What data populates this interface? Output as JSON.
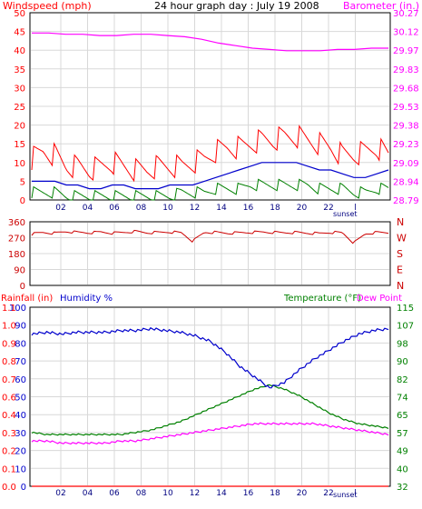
{
  "chart_data": [
    {
      "type": "line",
      "title": "24 hour graph day : July 19 2008",
      "left_axis_label": "Windspeed (mph)",
      "right_axis_label": "Barometer (in.)",
      "x_tick_labels": [
        "02",
        "04",
        "06",
        "08",
        "10",
        "12",
        "14",
        "16",
        "18",
        "20",
        "22",
        "l"
      ],
      "x_annotation": "sunset",
      "left_ticks": [
        "0",
        "5",
        "10",
        "15",
        "20",
        "25",
        "30",
        "35",
        "40",
        "45",
        "50"
      ],
      "right_ticks": [
        "28.79",
        "28.94",
        "29.09",
        "29.23",
        "29.38",
        "29.53",
        "29.68",
        "29.83",
        "29.97",
        "30.12",
        "30.27"
      ],
      "ylim_left": [
        0,
        50
      ],
      "grid": true,
      "colors": {
        "gust": "#ff0000",
        "average": "#0000cc",
        "wind_low": "#008000",
        "barometer": "#ff00ff"
      },
      "series": [
        {
          "values": [
            11,
            13,
            12,
            9,
            9,
            8,
            9,
            10,
            9,
            8,
            8,
            9,
            9,
            9,
            10,
            11,
            13,
            14,
            14,
            15,
            16,
            16,
            17,
            17,
            16,
            15,
            14,
            12,
            12,
            13,
            14,
            12
          ]
        },
        {
          "values": [
            5,
            5,
            5,
            4,
            4,
            3,
            3,
            4,
            4,
            3,
            3,
            3,
            4,
            4,
            4,
            5,
            6,
            7,
            8,
            9,
            10,
            10,
            10,
            10,
            9,
            8,
            8,
            7,
            6,
            6,
            7,
            8
          ]
        },
        {
          "values": [
            2,
            2,
            2,
            1,
            1,
            1,
            1,
            1,
            1,
            1,
            1,
            1,
            1,
            2,
            2,
            2,
            3,
            3,
            3,
            4,
            4,
            4,
            4,
            4,
            4,
            3,
            3,
            3,
            2,
            2,
            3,
            3
          ]
        },
        {
          "values": [
            30.11,
            30.11,
            30.1,
            30.1,
            30.09,
            30.09,
            30.1,
            30.1,
            30.09,
            30.08,
            30.06,
            30.03,
            30.01,
            29.99,
            29.98,
            29.97,
            29.97,
            29.97,
            29.98,
            29.98,
            29.99,
            29.99
          ]
        }
      ]
    },
    {
      "type": "line",
      "left_ticks": [
        "360",
        "270",
        "180",
        "90",
        "0"
      ],
      "right_ticks": [
        "N",
        "W",
        "S",
        "E",
        "N"
      ],
      "ylim": [
        0,
        360
      ],
      "colors": {
        "direction": "#cc0000"
      },
      "series": [
        {
          "values": [
            290,
            300,
            295,
            305,
            300,
            298,
            302,
            296,
            300,
            305,
            298,
            300,
            302,
            298,
            250,
            300,
            300,
            295,
            298,
            300,
            302,
            300,
            298,
            300,
            296,
            294,
            300,
            298,
            240,
            292,
            300,
            298
          ]
        }
      ]
    },
    {
      "type": "line",
      "rain_label": "Rainfall (in)",
      "humidity_label": "Humidity %",
      "temperature_label": "Temperature (°F)",
      "dew_label": "Dew Point",
      "left_ticks_humidity": [
        "0",
        "10",
        "20",
        "30",
        "40",
        "50",
        "60",
        "70",
        "80",
        "90",
        "100"
      ],
      "left_ticks_rain": [
        "0.0",
        "0.1",
        "0.2",
        "0.3",
        "0.4",
        "0.6",
        "0.7",
        "0.8",
        "0.9",
        "1.0",
        "1.1"
      ],
      "right_ticks": [
        "32",
        "40",
        "49",
        "57",
        "65",
        "74",
        "82",
        "90",
        "98",
        "107",
        "115"
      ],
      "x_tick_labels": [
        "02",
        "04",
        "06",
        "08",
        "10",
        "12",
        "14",
        "16",
        "18",
        "20",
        "22",
        "l"
      ],
      "x_annotation": "sunset",
      "ylim_humidity": [
        0,
        100
      ],
      "ylim_temperature": [
        32,
        115
      ],
      "grid": true,
      "colors": {
        "rainfall": "#ff0000",
        "humidity": "#0000cc",
        "temperature": "#008000",
        "dew_point": "#ff00ff"
      },
      "series": [
        {
          "x": [
            0,
            1,
            2,
            3,
            4,
            5,
            6,
            7,
            8,
            9,
            10,
            11,
            12,
            13,
            14,
            15,
            16,
            17,
            18,
            19,
            20,
            21,
            22,
            23,
            24
          ],
          "values": [
            0,
            0,
            0,
            0,
            0,
            0,
            0,
            0,
            0,
            0,
            0,
            0,
            0,
            0,
            0,
            0,
            0,
            0,
            0,
            0,
            0,
            0,
            0,
            0,
            0
          ]
        },
        {
          "x": [
            0,
            1,
            2,
            3,
            4,
            5,
            6,
            7,
            8,
            9,
            10,
            11,
            12,
            13,
            14,
            15,
            16,
            17,
            18,
            19,
            20,
            21,
            22,
            23,
            24
          ],
          "values": [
            85,
            86,
            85,
            86,
            86,
            86,
            87,
            87,
            88,
            87,
            86,
            84,
            81,
            75,
            67,
            61,
            55,
            58,
            65,
            71,
            76,
            81,
            85,
            87,
            88
          ]
        },
        {
          "x": [
            0,
            1,
            2,
            3,
            4,
            5,
            6,
            7,
            8,
            9,
            10,
            11,
            12,
            13,
            14,
            15,
            16,
            17,
            18,
            19,
            20,
            21,
            22,
            23,
            24
          ],
          "values": [
            57,
            56,
            56,
            56,
            56,
            56,
            56,
            57,
            58,
            60,
            62,
            65,
            68,
            71,
            74,
            77,
            79,
            77,
            74,
            70,
            66,
            63,
            61,
            60,
            59
          ]
        },
        {
          "x": [
            0,
            1,
            2,
            3,
            4,
            5,
            6,
            7,
            8,
            9,
            10,
            11,
            12,
            13,
            14,
            15,
            16,
            17,
            18,
            19,
            20,
            21,
            22,
            23,
            24
          ],
          "values": [
            53,
            53,
            52,
            52,
            52,
            52,
            53,
            53,
            54,
            55,
            56,
            57,
            58,
            59,
            60,
            61,
            61,
            61,
            61,
            61,
            60,
            59,
            58,
            57,
            56
          ]
        }
      ]
    }
  ]
}
